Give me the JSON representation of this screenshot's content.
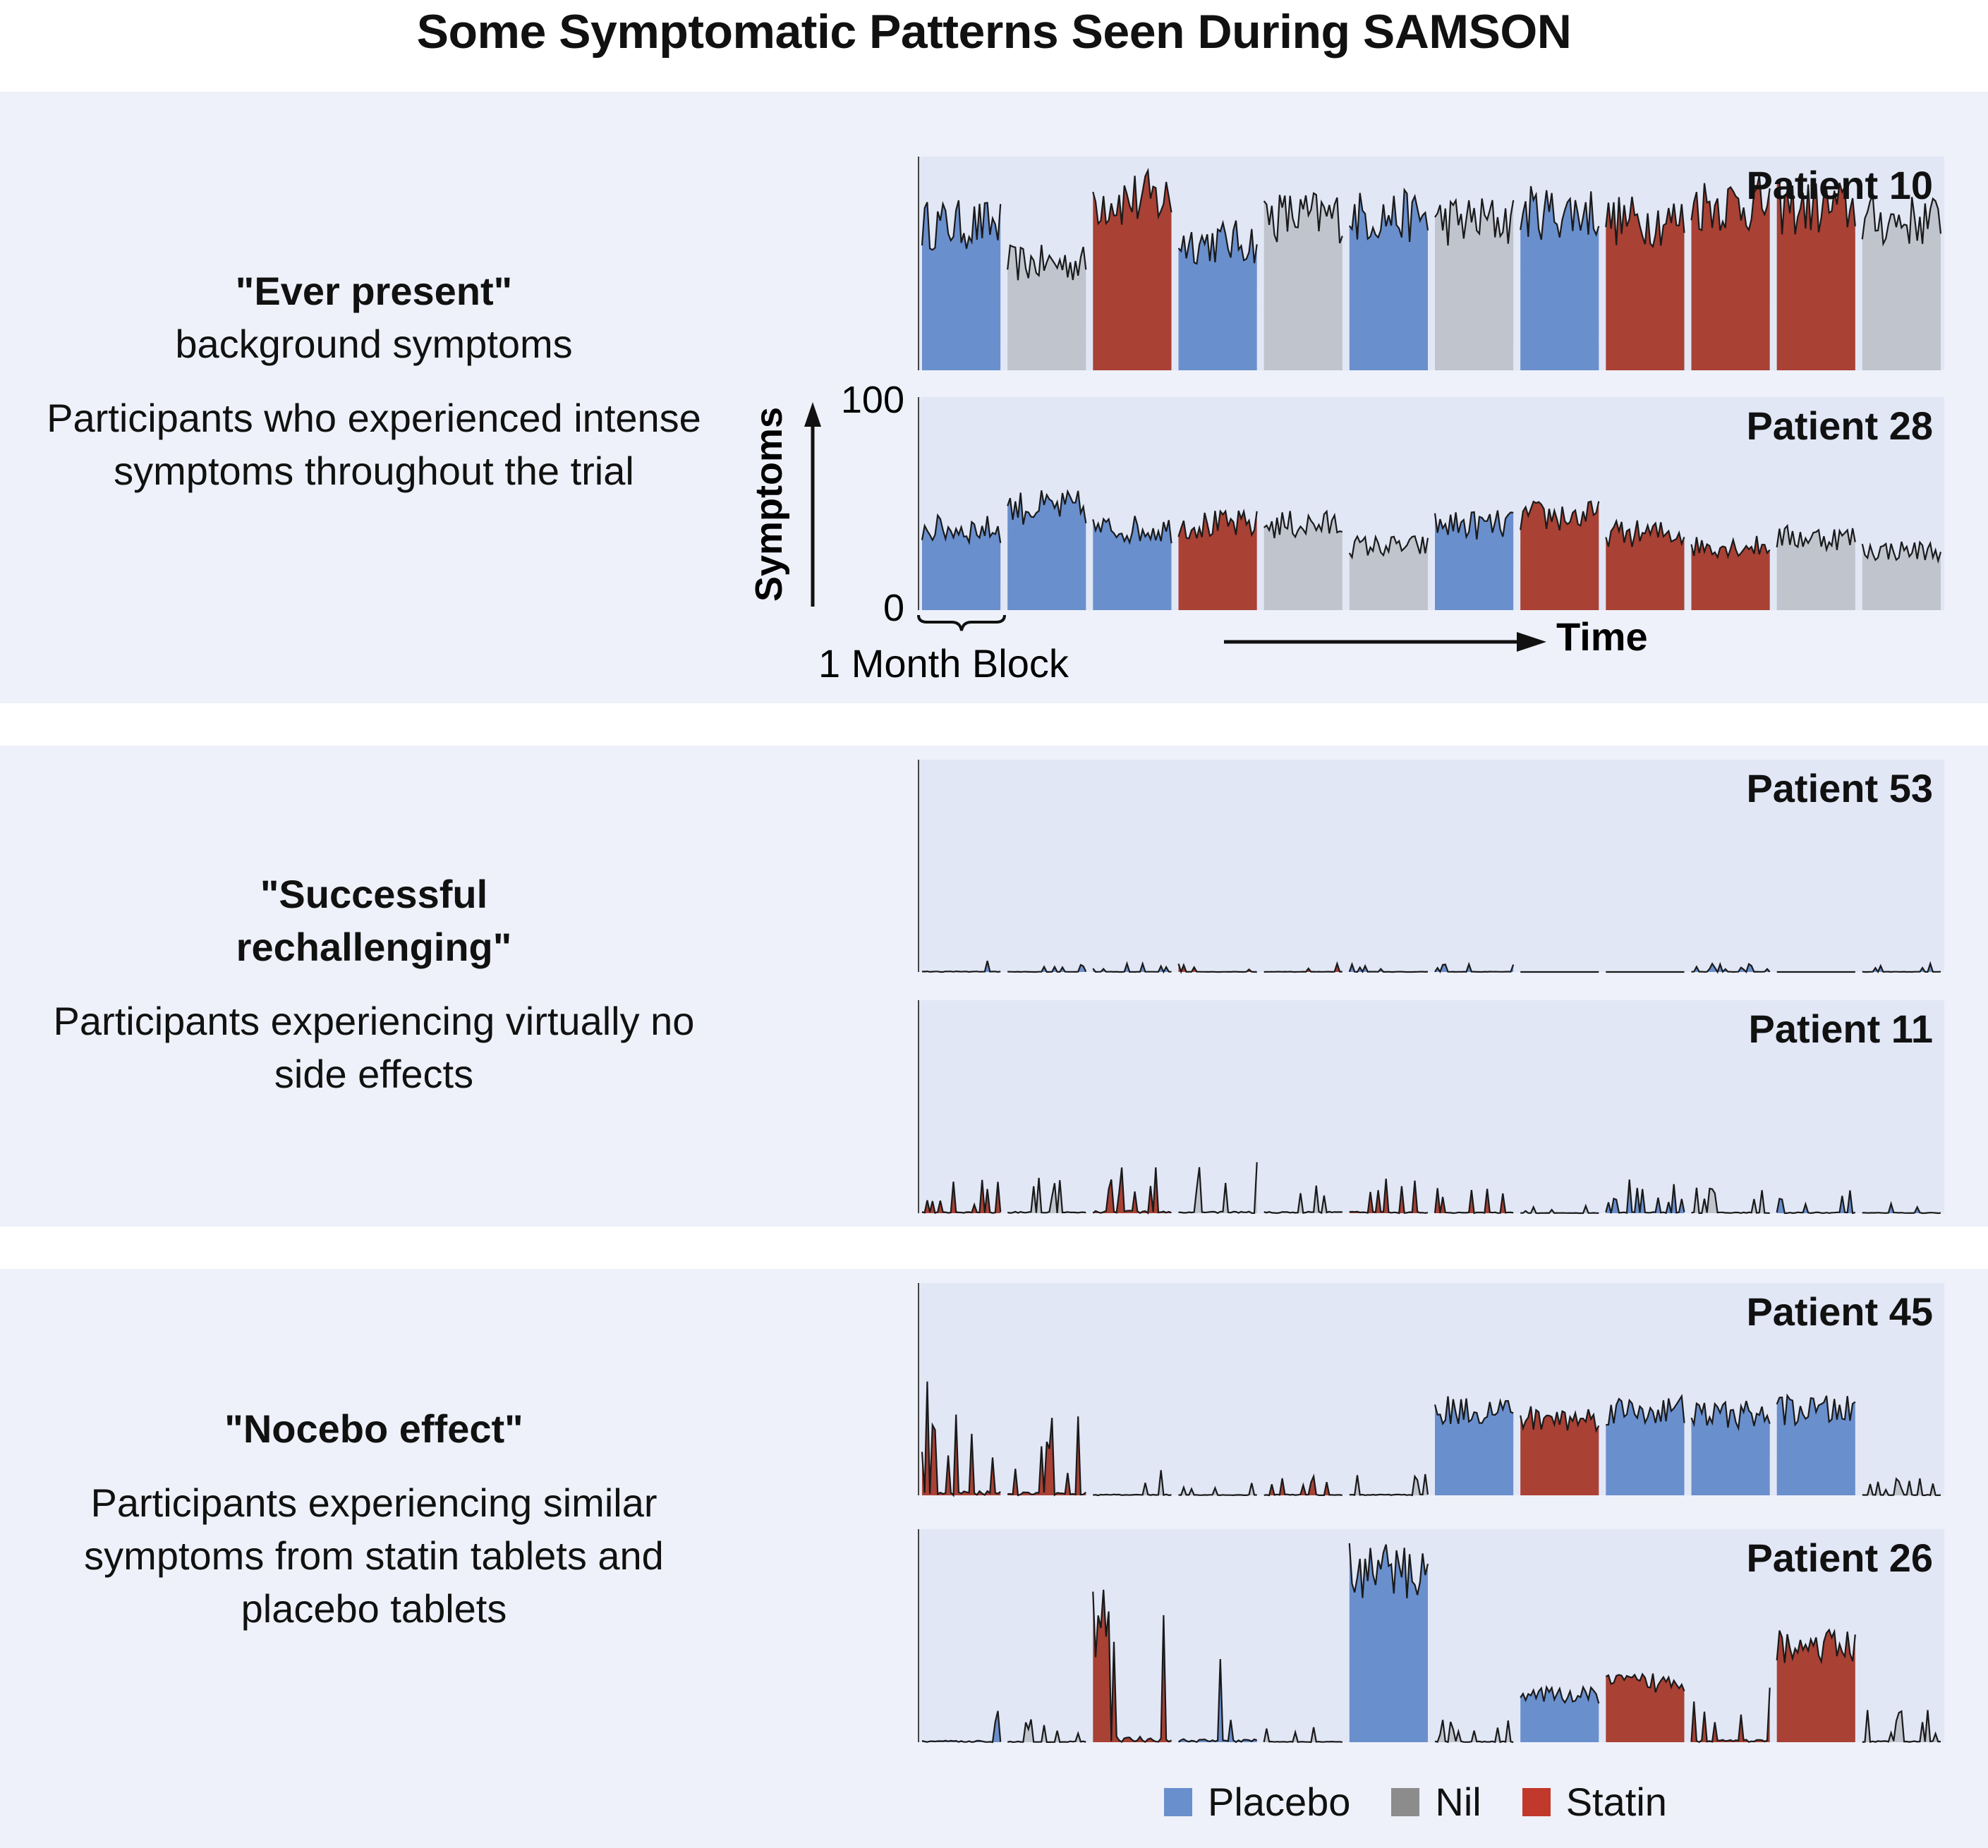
{
  "title": "Some Symptomatic Patterns Seen During SAMSON",
  "colors": {
    "placebo": "#6a8fcd",
    "nil": "#c0c4cd",
    "statin": "#a94135",
    "band": "#eef1f9",
    "panel": "#e2e7f6"
  },
  "sections": [
    {
      "heading": "\"Ever present\"",
      "subheading": "background symptoms",
      "text": "Participants who experienced intense symptoms throughout the trial"
    },
    {
      "heading": "\"Successful rechallenging\"",
      "subheading": "",
      "text": "Participants experiencing virtually no side effects"
    },
    {
      "heading": "\"Nocebo effect\"",
      "subheading": "",
      "text": "Participants experiencing similar symptoms from statin tablets and placebo tablets"
    }
  ],
  "annotations": {
    "y_axis_label": "Symptoms",
    "y_tick_top": "100",
    "y_tick_bottom": "0",
    "block_label": "1 Month Block",
    "time_label": "Time"
  },
  "legend": [
    {
      "label": "Placebo",
      "color": "#6a8fcd"
    },
    {
      "label": "Nil",
      "color": "#8c8c8c"
    },
    {
      "label": "Statin",
      "color": "#c0392b"
    }
  ],
  "chart_data": {
    "type": "area",
    "ylim": [
      0,
      100
    ],
    "ylabel": "Symptoms",
    "xlabel": "Time",
    "block_unit": "1 Month Block",
    "blocks_per_patient": 12,
    "panels": [
      {
        "name": "Patient 10",
        "blocks": [
          "placebo",
          "nil",
          "statin",
          "placebo",
          "nil",
          "placebo",
          "nil",
          "placebo",
          "statin",
          "statin",
          "statin",
          "nil"
        ],
        "levels": [
          68,
          50,
          80,
          60,
          72,
          72,
          70,
          74,
          70,
          78,
          76,
          70
        ]
      },
      {
        "name": "Patient 28",
        "blocks": [
          "placebo",
          "placebo",
          "placebo",
          "statin",
          "nil",
          "nil",
          "placebo",
          "statin",
          "statin",
          "statin",
          "nil",
          "nil"
        ],
        "levels": [
          38,
          48,
          38,
          40,
          40,
          30,
          40,
          44,
          36,
          30,
          34,
          28
        ]
      },
      {
        "name": "Patient 53",
        "blocks": [
          "placebo",
          "placebo",
          "placebo",
          "statin",
          "statin",
          "placebo",
          "placebo",
          "placebo",
          "placebo",
          "placebo",
          "placebo",
          "placebo"
        ],
        "levels": [
          2,
          1,
          1,
          1,
          1,
          1,
          1,
          0,
          0,
          1,
          0,
          1
        ]
      },
      {
        "name": "Patient 11",
        "blocks": [
          "statin",
          "nil",
          "statin",
          "nil",
          "nil",
          "statin",
          "statin",
          "nil",
          "placebo",
          "nil",
          "placebo",
          "placebo"
        ],
        "levels": [
          4,
          5,
          8,
          6,
          5,
          5,
          3,
          1,
          4,
          3,
          3,
          2
        ]
      },
      {
        "name": "Patient 45",
        "blocks": [
          "statin",
          "statin",
          "nil",
          "nil",
          "statin",
          "nil",
          "placebo",
          "statin",
          "placebo",
          "placebo",
          "placebo",
          "nil"
        ],
        "levels": [
          14,
          10,
          3,
          2,
          3,
          3,
          40,
          36,
          40,
          38,
          40,
          2
        ]
      },
      {
        "name": "Patient 26",
        "blocks": [
          "placebo",
          "nil",
          "statin",
          "placebo",
          "nil",
          "placebo",
          "nil",
          "placebo",
          "statin",
          "statin",
          "statin",
          "nil"
        ],
        "levels": [
          5,
          3,
          18,
          10,
          2,
          80,
          3,
          22,
          28,
          8,
          45,
          4
        ]
      }
    ]
  }
}
